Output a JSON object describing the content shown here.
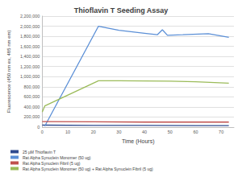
{
  "chart_data": {
    "type": "line",
    "title": "Thioflavin T Seeding Assay",
    "x_label": "Time (Hours)",
    "y_label": "Fluorescence (450 nm ex, 485 nm em)",
    "xlim": [
      0,
      75
    ],
    "xticks": [
      0,
      10,
      20,
      30,
      40,
      50,
      60,
      70
    ],
    "ylim": [
      0,
      2200000
    ],
    "yticks": [
      0,
      {
        "value": 200000,
        "label": "200,000"
      },
      {
        "value": 400000,
        "label": "400,000"
      },
      {
        "value": 600000,
        "label": "600,000"
      },
      {
        "value": 800000,
        "label": "800,000"
      },
      {
        "value": 1000000,
        "label": "1,000,000"
      },
      {
        "value": 1200000,
        "label": "1,200,000"
      },
      {
        "value": 1400000,
        "label": "1,400,000"
      },
      {
        "value": 1600000,
        "label": "1,600,000"
      },
      {
        "value": 1800000,
        "label": "1,800,000"
      },
      {
        "value": 2000000,
        "label": "2,000,000"
      },
      {
        "value": 2200000,
        "label": "2,200,000"
      }
    ],
    "grid": true,
    "legend": "bottom",
    "series": [
      {
        "name": "25 µM Thioflavin T",
        "color": "#2e4a8f",
        "x": [
          0,
          20,
          40,
          60,
          73
        ],
        "values": [
          40000,
          35000,
          35000,
          30000,
          30000
        ]
      },
      {
        "name": "Rat Alpha Synuclein Monomer (50 ug)",
        "color": "#5b8fd6",
        "x": [
          1,
          22,
          30,
          40,
          45,
          47,
          49,
          55,
          65,
          73
        ],
        "values": [
          20000,
          2000000,
          1920000,
          1860000,
          1830000,
          1930000,
          1820000,
          1830000,
          1850000,
          1780000
        ]
      },
      {
        "name": "Rat Alpha Synuclein Fibril (5 ug)",
        "color": "#c0504d",
        "x": [
          0,
          20,
          40,
          60,
          73
        ],
        "values": [
          110000,
          105000,
          100000,
          100000,
          100000
        ]
      },
      {
        "name": "Rat Alpha Synuclein Monomer (50 ug) + Rat Alpha Synuclein Fibril (5 ug)",
        "color": "#9bbb59",
        "x": [
          0,
          1,
          22,
          30,
          50,
          60,
          73
        ],
        "values": [
          300000,
          420000,
          920000,
          920000,
          910000,
          900000,
          870000
        ]
      }
    ]
  }
}
